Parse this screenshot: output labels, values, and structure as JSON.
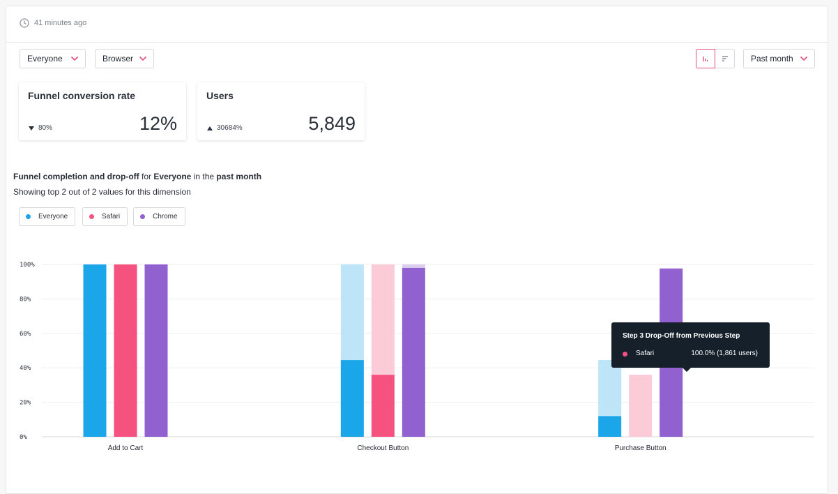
{
  "header": {
    "timestamp": "41 minutes ago"
  },
  "filters": {
    "segment": "Everyone",
    "breakdown": "Browser",
    "date_range": "Past month"
  },
  "view_toggles": {
    "active": "bar-chart"
  },
  "metrics": [
    {
      "title": "Funnel conversion rate",
      "delta": "80%",
      "delta_direction": "down",
      "value": "12%"
    },
    {
      "title": "Users",
      "delta": "30684%",
      "delta_direction": "up",
      "value": "5,849"
    }
  ],
  "chart_header": {
    "part1": "Funnel completion and drop-off",
    "part2": " for ",
    "segment": "Everyone",
    "part3": " in the ",
    "period": "past month",
    "note": "Showing top 2 out of 2 values for this dimension"
  },
  "legend": [
    {
      "name": "Everyone",
      "color": "#1aa6e8"
    },
    {
      "name": "Safari",
      "color": "#f5527f"
    },
    {
      "name": "Chrome",
      "color": "#9162cf"
    }
  ],
  "chart_data": {
    "type": "bar",
    "categories": [
      "Add to Cart",
      "Checkout Button",
      "Purchase Button"
    ],
    "ylim": [
      0,
      100
    ],
    "yticks": [
      "0%",
      "20%",
      "40%",
      "60%",
      "80%",
      "100%"
    ],
    "grid": true,
    "series": [
      {
        "name": "Everyone",
        "color": "#1aa6e8",
        "light_color": "#bde4f7",
        "completed": [
          100,
          44.5,
          12
        ],
        "previous": [
          100,
          100,
          44.5
        ]
      },
      {
        "name": "Safari",
        "color": "#f5527f",
        "light_color": "#fbcbd8",
        "completed": [
          100,
          36,
          0
        ],
        "previous": [
          100,
          100,
          36
        ]
      },
      {
        "name": "Chrome",
        "color": "#9162cf",
        "light_color": "#dccdef",
        "completed": [
          100,
          98,
          97.5
        ],
        "previous": [
          100,
          100,
          98
        ]
      }
    ]
  },
  "tooltip": {
    "title": "Step 3 Drop-Off from Previous Step",
    "series": "Safari",
    "series_color": "#f5527f",
    "value": "100.0% (1,861 users)"
  }
}
